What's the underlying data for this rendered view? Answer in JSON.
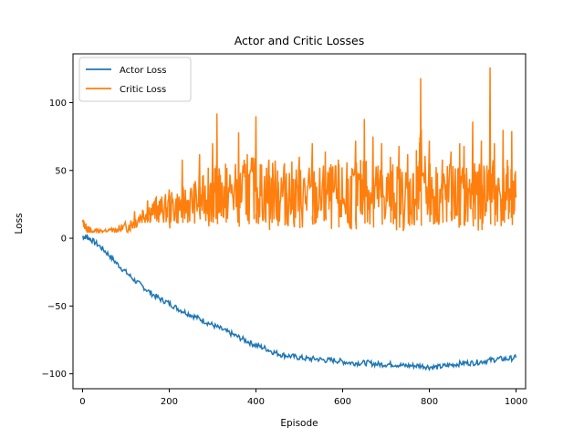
{
  "chart_data": {
    "type": "line",
    "title": "Actor and Critic Losses",
    "xlabel": "Episode",
    "ylabel": "Loss",
    "xlim": [
      -22,
      1022
    ],
    "ylim": [
      -111,
      136
    ],
    "xticks": [
      0,
      200,
      400,
      600,
      800,
      1000
    ],
    "yticks": [
      -100,
      -50,
      0,
      50,
      100
    ],
    "legend_position": "top-left",
    "grid": false,
    "series": [
      {
        "name": "Actor Loss",
        "color": "#1f77b4",
        "x": [
          0,
          10,
          20,
          40,
          60,
          80,
          100,
          120,
          140,
          160,
          180,
          200,
          220,
          240,
          260,
          280,
          300,
          320,
          340,
          360,
          380,
          400,
          420,
          440,
          460,
          480,
          500,
          520,
          540,
          560,
          580,
          600,
          620,
          640,
          660,
          680,
          700,
          720,
          740,
          760,
          780,
          800,
          820,
          840,
          860,
          880,
          900,
          920,
          940,
          960,
          980,
          1000
        ],
        "values": [
          1,
          1,
          -1,
          -6,
          -12,
          -19,
          -25,
          -31,
          -36,
          -41,
          -45,
          -48,
          -52,
          -55,
          -58,
          -61,
          -64,
          -67,
          -70,
          -73,
          -76,
          -79,
          -81,
          -84,
          -86,
          -87,
          -88,
          -89,
          -89,
          -90,
          -90,
          -91,
          -92,
          -92,
          -92,
          -93,
          -93,
          -93,
          -94,
          -94,
          -94,
          -95,
          -95,
          -94,
          -93,
          -92,
          -92,
          -91,
          -90,
          -89,
          -89,
          -88
        ]
      },
      {
        "name": "Critic Loss",
        "color": "#ff7f0e",
        "x": [
          0,
          10,
          20,
          40,
          60,
          80,
          100,
          120,
          140,
          160,
          180,
          200,
          220,
          240,
          260,
          280,
          300,
          310,
          320,
          340,
          360,
          380,
          400,
          420,
          440,
          460,
          480,
          500,
          520,
          540,
          560,
          580,
          600,
          620,
          640,
          650,
          660,
          680,
          700,
          720,
          740,
          760,
          775,
          780,
          800,
          820,
          840,
          860,
          880,
          900,
          920,
          940,
          960,
          980,
          990,
          1000
        ],
        "values": [
          12,
          7,
          4,
          3,
          4,
          6,
          8,
          12,
          18,
          20,
          21,
          22,
          23,
          25,
          27,
          29,
          30,
          35,
          31,
          33,
          34,
          35,
          36,
          33,
          34,
          33,
          32,
          31,
          30,
          29,
          30,
          30,
          30,
          31,
          32,
          45,
          33,
          32,
          33,
          31,
          30,
          31,
          32,
          60,
          33,
          32,
          31,
          32,
          31,
          30,
          31,
          40,
          32,
          33,
          32,
          30
        ],
        "spike_x": [
          120,
          150,
          170,
          200,
          230,
          270,
          290,
          300,
          310,
          330,
          360,
          380,
          400,
          430,
          450,
          470,
          500,
          530,
          560,
          590,
          610,
          630,
          650,
          670,
          690,
          710,
          730,
          750,
          770,
          780,
          800,
          830,
          850,
          870,
          880,
          900,
          920,
          940,
          950,
          970,
          990
        ],
        "spike_y": [
          20,
          28,
          30,
          36,
          58,
          62,
          52,
          70,
          92,
          55,
          78,
          62,
          90,
          58,
          50,
          48,
          60,
          70,
          64,
          58,
          56,
          72,
          88,
          75,
          70,
          60,
          68,
          62,
          65,
          118,
          72,
          58,
          64,
          70,
          68,
          86,
          72,
          126,
          70,
          80,
          79
        ]
      }
    ]
  }
}
